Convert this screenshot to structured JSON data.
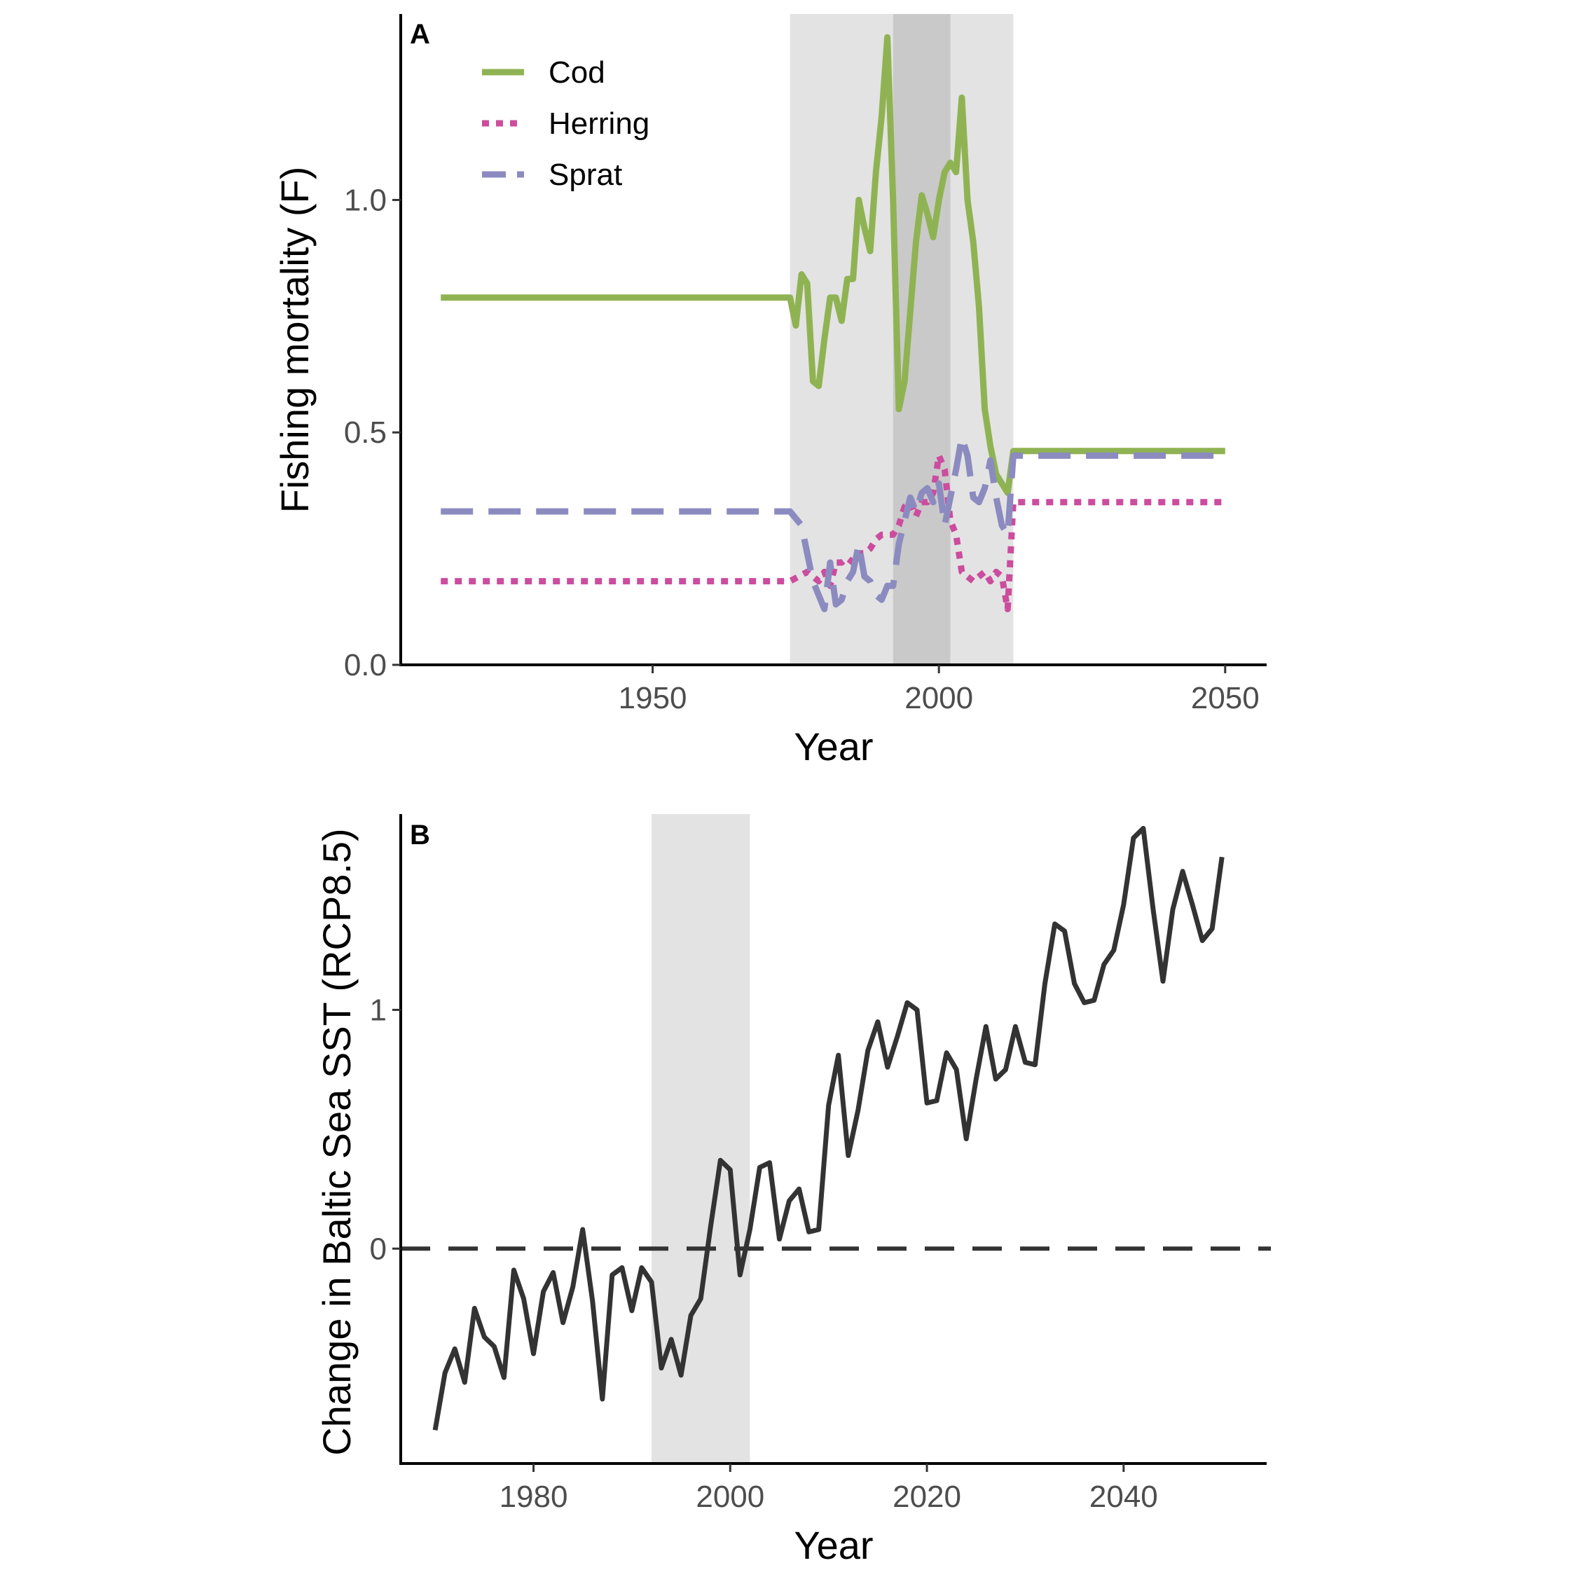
{
  "colors": {
    "cod": "#8fb352",
    "herring": "#cc4c9e",
    "sprat": "#8c8bc0",
    "sst": "#333333",
    "shade_light": "#e3e3e3",
    "shade_dark": "#c9c9c9",
    "zero_line": "#333333"
  },
  "chart_data": [
    {
      "panel": "A",
      "type": "line",
      "title": "",
      "xlabel": "Year",
      "ylabel": "Fishing mortality (F)",
      "xlim": [
        1906,
        2057
      ],
      "ylim": [
        0,
        1.4
      ],
      "x_ticks": [
        1950,
        2000,
        2050
      ],
      "y_ticks": [
        0.0,
        0.5,
        1.0
      ],
      "y_tick_labels": [
        "0.0",
        "0.5",
        "1.0"
      ],
      "grid": false,
      "legend_position": "top-left",
      "shaded_periods": [
        {
          "from": 1974,
          "to": 2013,
          "shade": "light"
        },
        {
          "from": 1992,
          "to": 2002,
          "shade": "dark"
        }
      ],
      "series": [
        {
          "name": "Cod",
          "style": "solid",
          "points": [
            [
              1913,
              0.79
            ],
            [
              1974,
              0.79
            ],
            [
              1975,
              0.73
            ],
            [
              1976,
              0.84
            ],
            [
              1977,
              0.82
            ],
            [
              1978,
              0.61
            ],
            [
              1979,
              0.6
            ],
            [
              1980,
              0.7
            ],
            [
              1981,
              0.79
            ],
            [
              1982,
              0.79
            ],
            [
              1983,
              0.74
            ],
            [
              1984,
              0.83
            ],
            [
              1985,
              0.83
            ],
            [
              1986,
              1.0
            ],
            [
              1987,
              0.94
            ],
            [
              1988,
              0.89
            ],
            [
              1989,
              1.06
            ],
            [
              1990,
              1.18
            ],
            [
              1991,
              1.35
            ],
            [
              1992,
              1.0
            ],
            [
              1993,
              0.55
            ],
            [
              1994,
              0.61
            ],
            [
              1995,
              0.76
            ],
            [
              1996,
              0.91
            ],
            [
              1997,
              1.01
            ],
            [
              1998,
              0.97
            ],
            [
              1999,
              0.92
            ],
            [
              2000,
              1.0
            ],
            [
              2001,
              1.06
            ],
            [
              2002,
              1.08
            ],
            [
              2003,
              1.06
            ],
            [
              2004,
              1.22
            ],
            [
              2005,
              1.0
            ],
            [
              2006,
              0.91
            ],
            [
              2007,
              0.77
            ],
            [
              2008,
              0.55
            ],
            [
              2009,
              0.47
            ],
            [
              2010,
              0.41
            ],
            [
              2011,
              0.39
            ],
            [
              2012,
              0.37
            ],
            [
              2013,
              0.46
            ],
            [
              2050,
              0.46
            ]
          ]
        },
        {
          "name": "Herring",
          "style": "dotted",
          "points": [
            [
              1913,
              0.18
            ],
            [
              1974,
              0.18
            ],
            [
              1977,
              0.2
            ],
            [
              1979,
              0.18
            ],
            [
              1980,
              0.2
            ],
            [
              1981,
              0.17
            ],
            [
              1982,
              0.22
            ],
            [
              1983,
              0.22
            ],
            [
              1984,
              0.23
            ],
            [
              1985,
              0.22
            ],
            [
              1986,
              0.24
            ],
            [
              1987,
              0.24
            ],
            [
              1988,
              0.25
            ],
            [
              1989,
              0.27
            ],
            [
              1990,
              0.28
            ],
            [
              1991,
              0.28
            ],
            [
              1992,
              0.28
            ],
            [
              1993,
              0.3
            ],
            [
              1994,
              0.34
            ],
            [
              1995,
              0.35
            ],
            [
              1996,
              0.32
            ],
            [
              1997,
              0.35
            ],
            [
              1998,
              0.35
            ],
            [
              1999,
              0.37
            ],
            [
              2000,
              0.45
            ],
            [
              2001,
              0.42
            ],
            [
              2002,
              0.31
            ],
            [
              2003,
              0.28
            ],
            [
              2004,
              0.2
            ],
            [
              2005,
              0.19
            ],
            [
              2006,
              0.18
            ],
            [
              2007,
              0.19
            ],
            [
              2008,
              0.2
            ],
            [
              2009,
              0.18
            ],
            [
              2010,
              0.2
            ],
            [
              2011,
              0.19
            ],
            [
              2012,
              0.12
            ],
            [
              2013,
              0.35
            ],
            [
              2050,
              0.35
            ]
          ]
        },
        {
          "name": "Sprat",
          "style": "dashed",
          "points": [
            [
              1913,
              0.33
            ],
            [
              1974,
              0.33
            ],
            [
              1976,
              0.3
            ],
            [
              1977,
              0.24
            ],
            [
              1978,
              0.18
            ],
            [
              1979,
              0.15
            ],
            [
              1980,
              0.12
            ],
            [
              1981,
              0.22
            ],
            [
              1982,
              0.13
            ],
            [
              1983,
              0.14
            ],
            [
              1984,
              0.18
            ],
            [
              1985,
              0.2
            ],
            [
              1986,
              0.26
            ],
            [
              1987,
              0.19
            ],
            [
              1988,
              0.18
            ],
            [
              1989,
              0.15
            ],
            [
              1990,
              0.14
            ],
            [
              1991,
              0.17
            ],
            [
              1992,
              0.17
            ],
            [
              1993,
              0.26
            ],
            [
              1994,
              0.31
            ],
            [
              1995,
              0.36
            ],
            [
              1996,
              0.33
            ],
            [
              1997,
              0.37
            ],
            [
              1998,
              0.38
            ],
            [
              1999,
              0.35
            ],
            [
              2000,
              0.39
            ],
            [
              2001,
              0.3
            ],
            [
              2002,
              0.36
            ],
            [
              2003,
              0.42
            ],
            [
              2004,
              0.49
            ],
            [
              2005,
              0.45
            ],
            [
              2006,
              0.36
            ],
            [
              2007,
              0.35
            ],
            [
              2008,
              0.38
            ],
            [
              2009,
              0.44
            ],
            [
              2010,
              0.36
            ],
            [
              2011,
              0.3
            ],
            [
              2012,
              0.28
            ],
            [
              2013,
              0.45
            ],
            [
              2050,
              0.45
            ]
          ]
        }
      ]
    },
    {
      "panel": "B",
      "type": "line",
      "title": "",
      "xlabel": "Year",
      "ylabel": "Change in Baltic Sea SST (RCP8.5)",
      "xlim": [
        1966.5,
        2054.4
      ],
      "ylim": [
        -0.9,
        1.82
      ],
      "x_ticks": [
        1980,
        2000,
        2020,
        2040
      ],
      "y_ticks": [
        0,
        1
      ],
      "y_tick_labels": [
        "0",
        "1"
      ],
      "grid": false,
      "reference_line": {
        "y": 0,
        "style": "dashed"
      },
      "shaded_periods": [
        {
          "from": 1992,
          "to": 2002,
          "shade": "light"
        }
      ],
      "series": [
        {
          "style": "solid",
          "points": [
            [
              1970,
              -0.76
            ],
            [
              1971,
              -0.52
            ],
            [
              1972,
              -0.42
            ],
            [
              1973,
              -0.56
            ],
            [
              1974,
              -0.25
            ],
            [
              1975,
              -0.37
            ],
            [
              1976,
              -0.41
            ],
            [
              1977,
              -0.54
            ],
            [
              1978,
              -0.09
            ],
            [
              1979,
              -0.21
            ],
            [
              1980,
              -0.44
            ],
            [
              1981,
              -0.18
            ],
            [
              1982,
              -0.1
            ],
            [
              1983,
              -0.31
            ],
            [
              1984,
              -0.16
            ],
            [
              1985,
              0.08
            ],
            [
              1986,
              -0.22
            ],
            [
              1987,
              -0.63
            ],
            [
              1988,
              -0.11
            ],
            [
              1989,
              -0.08
            ],
            [
              1990,
              -0.26
            ],
            [
              1991,
              -0.08
            ],
            [
              1992,
              -0.14
            ],
            [
              1993,
              -0.5
            ],
            [
              1994,
              -0.38
            ],
            [
              1995,
              -0.53
            ],
            [
              1996,
              -0.28
            ],
            [
              1997,
              -0.21
            ],
            [
              1998,
              0.09
            ],
            [
              1999,
              0.37
            ],
            [
              2000,
              0.33
            ],
            [
              2001,
              -0.11
            ],
            [
              2002,
              0.08
            ],
            [
              2003,
              0.34
            ],
            [
              2004,
              0.36
            ],
            [
              2005,
              0.04
            ],
            [
              2006,
              0.2
            ],
            [
              2007,
              0.25
            ],
            [
              2008,
              0.07
            ],
            [
              2009,
              0.08
            ],
            [
              2010,
              0.6
            ],
            [
              2011,
              0.81
            ],
            [
              2012,
              0.39
            ],
            [
              2013,
              0.58
            ],
            [
              2014,
              0.83
            ],
            [
              2015,
              0.95
            ],
            [
              2016,
              0.76
            ],
            [
              2017,
              0.89
            ],
            [
              2018,
              1.03
            ],
            [
              2019,
              1.0
            ],
            [
              2020,
              0.61
            ],
            [
              2021,
              0.62
            ],
            [
              2022,
              0.82
            ],
            [
              2023,
              0.75
            ],
            [
              2024,
              0.46
            ],
            [
              2025,
              0.71
            ],
            [
              2026,
              0.93
            ],
            [
              2027,
              0.71
            ],
            [
              2028,
              0.75
            ],
            [
              2029,
              0.93
            ],
            [
              2030,
              0.78
            ],
            [
              2031,
              0.77
            ],
            [
              2032,
              1.11
            ],
            [
              2033,
              1.36
            ],
            [
              2034,
              1.33
            ],
            [
              2035,
              1.11
            ],
            [
              2036,
              1.03
            ],
            [
              2037,
              1.04
            ],
            [
              2038,
              1.19
            ],
            [
              2039,
              1.25
            ],
            [
              2040,
              1.44
            ],
            [
              2041,
              1.72
            ],
            [
              2042,
              1.76
            ],
            [
              2043,
              1.42
            ],
            [
              2044,
              1.12
            ],
            [
              2045,
              1.42
            ],
            [
              2046,
              1.58
            ],
            [
              2047,
              1.44
            ],
            [
              2048,
              1.29
            ],
            [
              2049,
              1.34
            ],
            [
              2050,
              1.64
            ]
          ]
        }
      ]
    }
  ]
}
